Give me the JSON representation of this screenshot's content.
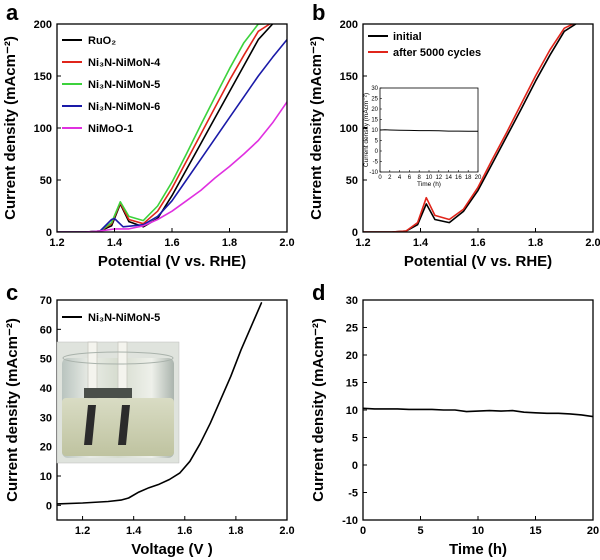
{
  "chart_data": [
    {
      "panel": "a",
      "type": "line",
      "xlabel": "Potential (V vs. RHE)",
      "ylabel": "Current density (mAcm⁻²)",
      "xlim": [
        1.2,
        2.0
      ],
      "ylim": [
        0,
        200
      ],
      "xticks": [
        "1.2",
        "1.4",
        "1.6",
        "1.8",
        "2.0"
      ],
      "yticks": [
        "0",
        "50",
        "100",
        "150",
        "200"
      ],
      "legend": "top-left",
      "series": [
        {
          "name": "RuO₂",
          "color": "#000000",
          "x": [
            1.2,
            1.3,
            1.35,
            1.39,
            1.42,
            1.45,
            1.5,
            1.55,
            1.6,
            1.65,
            1.7,
            1.75,
            1.8,
            1.85,
            1.9,
            1.95
          ],
          "y": [
            0,
            0,
            1,
            6,
            27,
            10,
            5,
            13,
            35,
            60,
            85,
            110,
            135,
            160,
            185,
            200
          ]
        },
        {
          "name": "Ni₃N-NiMoN-4",
          "color": "#e0251b",
          "x": [
            1.2,
            1.3,
            1.35,
            1.39,
            1.42,
            1.45,
            1.5,
            1.55,
            1.6,
            1.65,
            1.7,
            1.75,
            1.8,
            1.85,
            1.9,
            1.94
          ],
          "y": [
            0,
            0,
            1,
            8,
            28,
            12,
            8,
            20,
            42,
            68,
            94,
            120,
            146,
            170,
            193,
            200
          ]
        },
        {
          "name": "Ni₃N-NiMoN-5",
          "color": "#3cd23c",
          "x": [
            1.2,
            1.3,
            1.35,
            1.39,
            1.42,
            1.45,
            1.5,
            1.55,
            1.6,
            1.65,
            1.7,
            1.75,
            1.8,
            1.85,
            1.9,
            1.92
          ],
          "y": [
            0,
            0,
            1,
            9,
            29,
            15,
            11,
            25,
            48,
            75,
            103,
            130,
            157,
            182,
            200,
            200
          ]
        },
        {
          "name": "Ni₃N-NiMoN-6",
          "color": "#1a1aa8",
          "x": [
            1.2,
            1.3,
            1.35,
            1.39,
            1.4,
            1.43,
            1.5,
            1.55,
            1.6,
            1.65,
            1.7,
            1.75,
            1.8,
            1.85,
            1.9,
            1.95,
            2.0
          ],
          "y": [
            0,
            0,
            1,
            12,
            13,
            5,
            7,
            15,
            30,
            50,
            70,
            90,
            110,
            130,
            150,
            168,
            185
          ]
        },
        {
          "name": "NiMoO-1",
          "color": "#e030e0",
          "x": [
            1.2,
            1.3,
            1.35,
            1.4,
            1.45,
            1.5,
            1.55,
            1.6,
            1.65,
            1.7,
            1.75,
            1.8,
            1.85,
            1.9,
            1.95,
            2.0
          ],
          "y": [
            0,
            0,
            1,
            3,
            3,
            6,
            12,
            20,
            30,
            40,
            52,
            63,
            75,
            88,
            105,
            125
          ]
        }
      ]
    },
    {
      "panel": "b",
      "type": "line",
      "xlabel": "Potential (V vs. RHE)",
      "ylabel": "Current density (mAcm⁻²)",
      "xlim": [
        1.2,
        2.0
      ],
      "ylim": [
        0,
        200
      ],
      "xticks": [
        "1.2",
        "1.4",
        "1.6",
        "1.8",
        "2.0"
      ],
      "yticks": [
        "0",
        "50",
        "100",
        "150",
        "200"
      ],
      "legend": "top-left",
      "series": [
        {
          "name": "initial",
          "color": "#000000",
          "x": [
            1.2,
            1.3,
            1.35,
            1.39,
            1.42,
            1.45,
            1.5,
            1.55,
            1.6,
            1.65,
            1.7,
            1.75,
            1.8,
            1.85,
            1.9,
            1.94
          ],
          "y": [
            0,
            0,
            1,
            7,
            27,
            12,
            9,
            20,
            40,
            66,
            92,
            118,
            145,
            170,
            193,
            200
          ]
        },
        {
          "name": "after 5000 cycles",
          "color": "#e0251b",
          "x": [
            1.2,
            1.3,
            1.35,
            1.39,
            1.42,
            1.45,
            1.5,
            1.55,
            1.6,
            1.65,
            1.7,
            1.75,
            1.8,
            1.85,
            1.9,
            1.93
          ],
          "y": [
            0,
            0,
            1,
            9,
            33,
            16,
            12,
            22,
            43,
            70,
            96,
            123,
            150,
            175,
            196,
            200
          ]
        }
      ],
      "inset": {
        "xlabel": "Time (h)",
        "ylabel": "Current density (mAcm⁻²)",
        "xlim": [
          0,
          20
        ],
        "ylim": [
          -10,
          30
        ],
        "xticks": [
          "0",
          "2",
          "4",
          "6",
          "8",
          "10",
          "12",
          "14",
          "16",
          "18",
          "20"
        ],
        "yticks": [
          "-10",
          "-5",
          "0",
          "5",
          "10",
          "15",
          "20",
          "25",
          "30"
        ],
        "x": [
          0,
          1,
          2,
          4,
          6,
          8,
          10,
          12,
          14,
          16,
          18,
          20
        ],
        "y": [
          10,
          10.1,
          10,
          9.9,
          9.8,
          9.7,
          9.7,
          9.6,
          9.5,
          9.5,
          9.4,
          9.4
        ]
      }
    },
    {
      "panel": "c",
      "type": "line",
      "xlabel": "Voltage (V )",
      "ylabel": "Current density (mAcm⁻²)",
      "xlim": [
        1.1,
        2.0
      ],
      "ylim": [
        -5,
        70
      ],
      "xticks": [
        "1.2",
        "1.4",
        "1.6",
        "1.8",
        "2.0"
      ],
      "yticks": [
        "0",
        "10",
        "20",
        "30",
        "40",
        "50",
        "60",
        "70"
      ],
      "legend": "top-left",
      "series": [
        {
          "name": "Ni₃N-NiMoN-5",
          "color": "#000000",
          "x": [
            1.1,
            1.2,
            1.3,
            1.35,
            1.38,
            1.42,
            1.46,
            1.5,
            1.54,
            1.58,
            1.62,
            1.66,
            1.7,
            1.74,
            1.78,
            1.82,
            1.86,
            1.9
          ],
          "y": [
            0.5,
            0.8,
            1.3,
            1.8,
            2.5,
            4.5,
            6,
            7.2,
            8.8,
            11,
            15,
            21,
            28,
            36,
            44,
            53,
            61,
            69
          ]
        }
      ]
    },
    {
      "panel": "d",
      "type": "line",
      "xlabel": "Time (h)",
      "ylabel": "Current density (mAcm⁻²)",
      "xlim": [
        0,
        20
      ],
      "ylim": [
        -10,
        30
      ],
      "xticks": [
        "0",
        "5",
        "10",
        "15",
        "20"
      ],
      "yticks": [
        "-10",
        "-5",
        "0",
        "5",
        "10",
        "15",
        "20",
        "25",
        "30"
      ],
      "series": [
        {
          "color": "#000000",
          "x": [
            0,
            1,
            2,
            3,
            4,
            5,
            6,
            7,
            8,
            9,
            10,
            11,
            12,
            13,
            14,
            15,
            16,
            17,
            18,
            19,
            20
          ],
          "y": [
            10.3,
            10.2,
            10.2,
            10.2,
            10.1,
            10.1,
            10.1,
            10,
            10,
            9.7,
            9.8,
            9.9,
            9.8,
            9.9,
            9.6,
            9.5,
            9.4,
            9.4,
            9.3,
            9.1,
            8.8
          ]
        }
      ]
    }
  ]
}
